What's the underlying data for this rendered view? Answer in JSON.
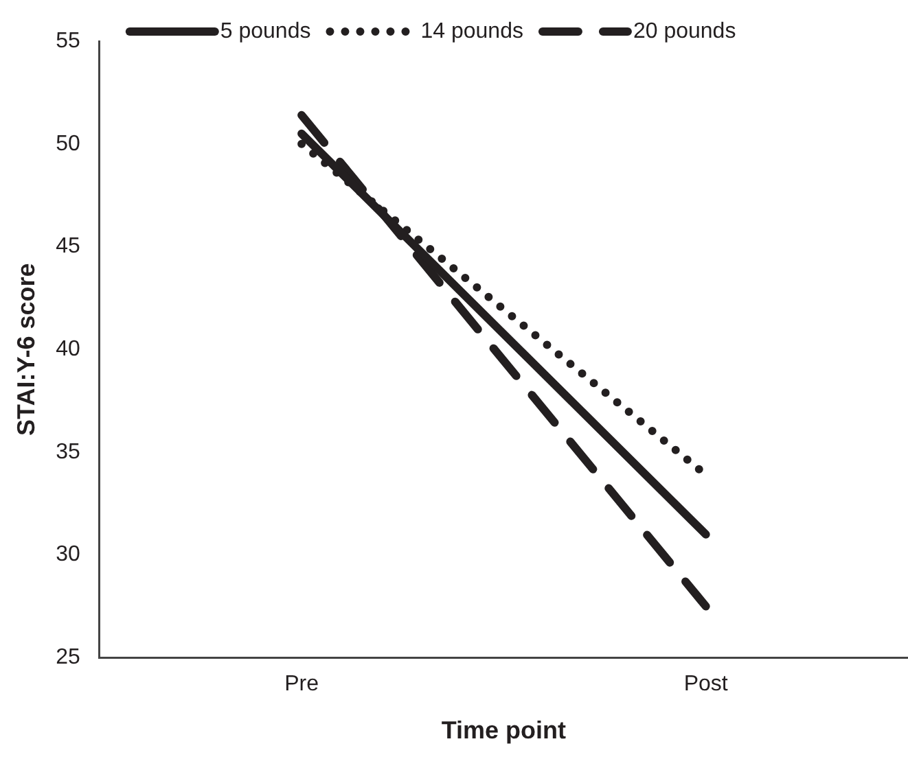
{
  "chart_data": {
    "type": "line",
    "xlabel": "Time point",
    "ylabel": "STAI:Y-6 score",
    "categories": [
      "Pre",
      "Post"
    ],
    "series": [
      {
        "name": "5 pounds",
        "color": "#231f20",
        "values": [
          50.5,
          31.0
        ],
        "line_style": "solid"
      },
      {
        "name": "14 pounds",
        "color": "#231f20",
        "values": [
          50.0,
          33.9
        ],
        "line_style": "dotted"
      },
      {
        "name": "20 pounds",
        "color": "#231f20",
        "values": [
          51.4,
          27.5
        ],
        "line_style": "dashed"
      }
    ],
    "ylim": [
      25,
      55
    ],
    "yticks": [
      25,
      30,
      35,
      40,
      45,
      50,
      55
    ],
    "grid": false,
    "legend": "top",
    "marker": "none"
  }
}
